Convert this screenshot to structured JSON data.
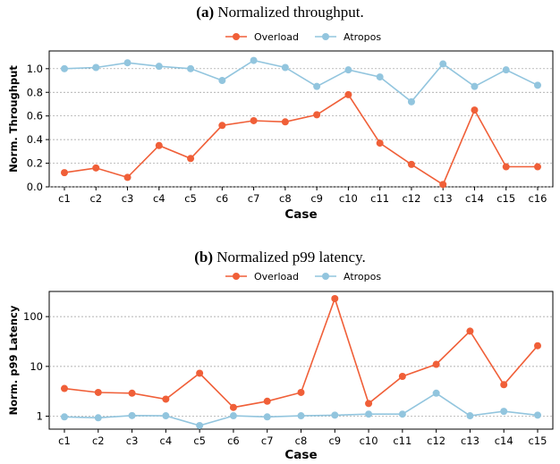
{
  "charts": [
    {
      "caption_label": "(a)",
      "caption_text": " Normalized throughput.",
      "ylabel": "Norm. Throughput",
      "xlabel": "Case"
    },
    {
      "caption_label": "(b)",
      "caption_text": " Normalized p99 latency.",
      "ylabel": "Norm. p99 Latency",
      "xlabel": "Case"
    }
  ],
  "colors": {
    "overload": "#F05F38",
    "atropos": "#92C5DE"
  },
  "chart_data": [
    {
      "type": "line",
      "title": "(a) Normalized throughput.",
      "xlabel": "Case",
      "ylabel": "Norm. Throughput",
      "categories": [
        "c1",
        "c2",
        "c3",
        "c4",
        "c5",
        "c6",
        "c7",
        "c8",
        "c9",
        "c10",
        "c11",
        "c12",
        "c13",
        "c14",
        "c15",
        "c16"
      ],
      "ylim": [
        0,
        1.15
      ],
      "yticks": [
        0.0,
        0.2,
        0.4,
        0.6,
        0.8,
        1.0
      ],
      "ytick_labels": [
        "0.0",
        "0.2",
        "0.4",
        "0.6",
        "0.8",
        "1.0"
      ],
      "yscale": "linear",
      "grid": true,
      "legend_position": "top-center",
      "series": [
        {
          "name": "Overload",
          "color": "#F05F38",
          "values": [
            0.12,
            0.16,
            0.08,
            0.35,
            0.24,
            0.52,
            0.56,
            0.55,
            0.61,
            0.78,
            0.37,
            0.19,
            0.02,
            0.65,
            0.17,
            0.17
          ]
        },
        {
          "name": "Atropos",
          "color": "#92C5DE",
          "values": [
            1.0,
            1.01,
            1.05,
            1.02,
            1.0,
            0.9,
            1.07,
            1.01,
            0.85,
            0.99,
            0.93,
            0.72,
            1.04,
            0.85,
            0.99,
            0.86
          ]
        }
      ]
    },
    {
      "type": "line",
      "title": "(b) Normalized p99 latency.",
      "xlabel": "Case",
      "ylabel": "Norm. p99 Latency",
      "categories": [
        "c1",
        "c2",
        "c3",
        "c4",
        "c5",
        "c6",
        "c7",
        "c8",
        "c9",
        "c10",
        "c11",
        "c12",
        "c13",
        "c14",
        "c15"
      ],
      "ylim": [
        0.55,
        320
      ],
      "yticks": [
        1,
        10,
        100
      ],
      "ytick_labels": [
        "1",
        "10",
        "100"
      ],
      "yscale": "log",
      "grid": true,
      "legend_position": "top-center",
      "series": [
        {
          "name": "Overload",
          "color": "#F05F38",
          "values": [
            3.6,
            3.0,
            2.9,
            2.2,
            7.3,
            1.5,
            2.0,
            3.0,
            230,
            1.8,
            6.3,
            11,
            51,
            4.3,
            26
          ]
        },
        {
          "name": "Atropos",
          "color": "#92C5DE",
          "values": [
            0.97,
            0.93,
            1.03,
            1.02,
            0.65,
            1.02,
            0.97,
            1.02,
            1.05,
            1.1,
            1.1,
            2.9,
            1.02,
            1.25,
            1.05
          ]
        }
      ]
    }
  ]
}
